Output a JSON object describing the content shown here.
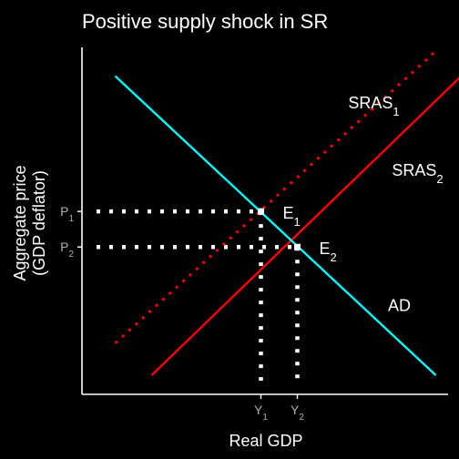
{
  "chart_data": {
    "type": "line",
    "title": "Positive supply shock in SR",
    "xlabel": "Real GDP",
    "ylabel_line1": "Aggregate price",
    "ylabel_line2": "(GDP deflator)",
    "xlim": [
      0,
      10
    ],
    "ylim": [
      0,
      10
    ],
    "series": [
      {
        "name": "SRAS",
        "subscript": "1",
        "style": "dotted",
        "color": "#ff0000",
        "x": [
          0.5,
          9.3
        ],
        "y": [
          1.3,
          9.5
        ]
      },
      {
        "name": "SRAS",
        "subscript": "2",
        "style": "solid",
        "color": "#ff0000",
        "x": [
          1.5,
          10.0
        ],
        "y": [
          0.4,
          8.8
        ]
      },
      {
        "name": "AD",
        "style": "solid",
        "color": "#00ffff",
        "x": [
          0.5,
          9.3
        ],
        "y": [
          8.8,
          0.4
        ]
      }
    ],
    "equilibria": [
      {
        "label": "E",
        "subscript": "1",
        "x": 4.5,
        "y": 5.0
      },
      {
        "label": "E",
        "subscript": "2",
        "x": 5.5,
        "y": 4.0
      }
    ],
    "x_ticks": [
      {
        "label": "Y",
        "subscript": "1",
        "value": 4.5
      },
      {
        "label": "Y",
        "subscript": "2",
        "value": 5.5
      }
    ],
    "y_ticks": [
      {
        "label": "P",
        "subscript": "1",
        "value": 5.0
      },
      {
        "label": "P",
        "subscript": "2",
        "value": 4.0
      }
    ],
    "curve_labels": [
      {
        "label": "SRAS",
        "subscript": "1",
        "x": 7.6,
        "y": 7.9
      },
      {
        "label": "SRAS",
        "subscript": "2",
        "x": 8.8,
        "y": 6.0
      },
      {
        "label": "AD",
        "x": 8.3,
        "y": 2.2
      }
    ],
    "colors": {
      "background": "#000000",
      "axis": "#ffffff",
      "sras": "#ff0000",
      "ad": "#00ffff",
      "guides": "#ffffff",
      "tick_text": "#b0b0b0"
    }
  }
}
